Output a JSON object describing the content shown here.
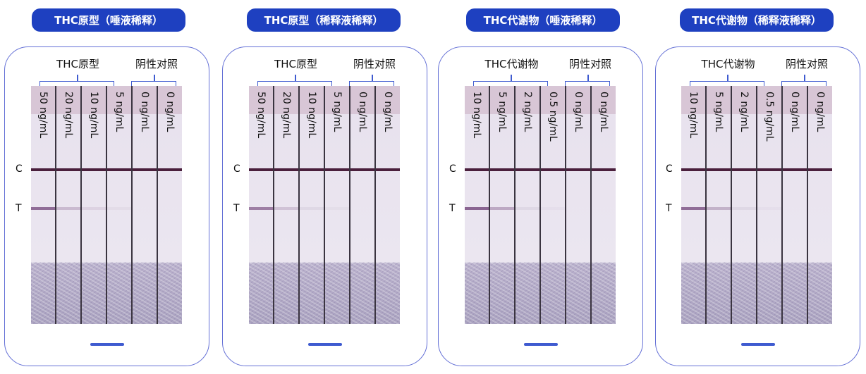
{
  "panels": [
    {
      "title": "THC原型（唾液稀释）",
      "analyte_group": "THC原型",
      "control_group": "阴性对照",
      "strips": [
        {
          "label": "50 ng/mL",
          "t_intensity": 0.7
        },
        {
          "label": "20 ng/mL",
          "t_intensity": 0.25
        },
        {
          "label": "10 ng/mL",
          "t_intensity": 0.1
        },
        {
          "label": "5 ng/mL",
          "t_intensity": 0.05
        },
        {
          "label": "0 ng/mL",
          "t_intensity": 0
        },
        {
          "label": "0 ng/mL",
          "t_intensity": 0
        }
      ]
    },
    {
      "title": "THC原型（稀释液稀释）",
      "analyte_group": "THC原型",
      "control_group": "阴性对照",
      "strips": [
        {
          "label": "50 ng/mL",
          "t_intensity": 0.6
        },
        {
          "label": "20 ng/mL",
          "t_intensity": 0.2
        },
        {
          "label": "10 ng/mL",
          "t_intensity": 0.08
        },
        {
          "label": "5 ng/mL",
          "t_intensity": 0.04
        },
        {
          "label": "0 ng/mL",
          "t_intensity": 0
        },
        {
          "label": "0 ng/mL",
          "t_intensity": 0
        }
      ]
    },
    {
      "title": "THC代谢物（唾液稀释）",
      "analyte_group": "THC代谢物",
      "control_group": "阴性对照",
      "strips": [
        {
          "label": "10 ng/mL",
          "t_intensity": 0.75
        },
        {
          "label": "5 ng/mL",
          "t_intensity": 0.35
        },
        {
          "label": "2 ng/mL",
          "t_intensity": 0.08
        },
        {
          "label": "0.5 ng/mL",
          "t_intensity": 0.03
        },
        {
          "label": "0 ng/mL",
          "t_intensity": 0
        },
        {
          "label": "0 ng/mL",
          "t_intensity": 0
        }
      ]
    },
    {
      "title": "THC代谢物（稀释液稀释）",
      "analyte_group": "THC代谢物",
      "control_group": "阴性对照",
      "strips": [
        {
          "label": "10 ng/mL",
          "t_intensity": 0.7
        },
        {
          "label": "5 ng/mL",
          "t_intensity": 0.3
        },
        {
          "label": "2 ng/mL",
          "t_intensity": 0.08
        },
        {
          "label": "0.5 ng/mL",
          "t_intensity": 0.03
        },
        {
          "label": "0 ng/mL",
          "t_intensity": 0
        },
        {
          "label": "0 ng/mL",
          "t_intensity": 0
        }
      ]
    }
  ],
  "c_label": "C",
  "t_label": "T",
  "colors": {
    "accent": "#1e40c0",
    "card_border": "#6470d6"
  }
}
